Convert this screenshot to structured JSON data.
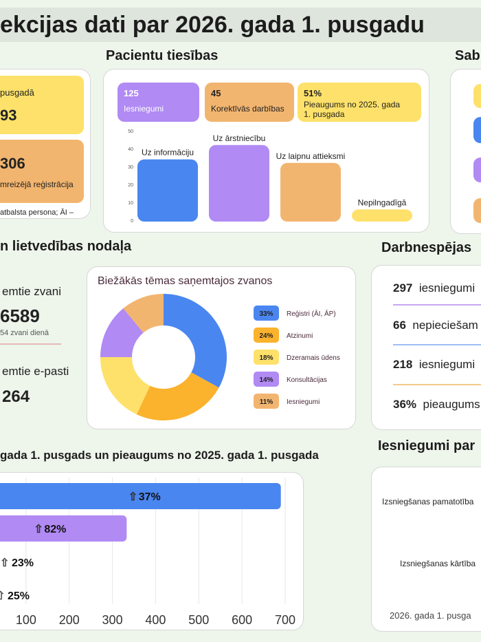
{
  "header": {
    "title": "ekcijas dati par 2026. gada 1. pusgadu"
  },
  "left_card": {
    "top_label": "pusgadā",
    "top_value": "93",
    "mid_value": "306",
    "mid_label": "mreizējā reģistrācija",
    "footnote": "atbalsta persona; ĀI –"
  },
  "patient_rights": {
    "heading": "Pacientu tiesības",
    "tiles": [
      {
        "value": "125",
        "label": "Iesniegumi",
        "color": "#b18af4"
      },
      {
        "value": "45",
        "label": "Korektīvās darbības",
        "color": "#f2b56f"
      },
      {
        "value": "51%",
        "label": "Pieaugums no 2025. gada 1. pusgada",
        "color": "#fde16a"
      }
    ]
  },
  "right_top": {
    "heading": "Sab"
  },
  "office": {
    "heading": "n lietvedības nodaļa",
    "calls_label": "emtie zvani",
    "calls_value": "6589",
    "calls_sub": "54 zvani dienā",
    "emails_label": "emtie e-pasti",
    "emails_value": "264"
  },
  "topics": {
    "heading": "Biežākās tēmas saņemtajos zvanos"
  },
  "work": {
    "heading": "Darbnespējas",
    "rows": [
      {
        "value": "297",
        "label": "iesniegumi"
      },
      {
        "value": "66",
        "label": "nepieciešam"
      },
      {
        "value": "218",
        "label": "iesniegumi"
      },
      {
        "value": "36%",
        "label": "pieaugums"
      }
    ]
  },
  "growth": {
    "heading": "gada 1. pusgads un pieaugums no 2025. gada 1. pusgada"
  },
  "applications": {
    "heading": "Iesniegumi par",
    "row1": "Izsniegšanas pamatotība",
    "row2": "Izsniegšanas kārtība",
    "footer": "2026. gada 1. pusga"
  },
  "chart_data": [
    {
      "type": "bar",
      "categories": [
        "Uz informāciju",
        "Uz ārstniecību",
        "Uz laipnu attieksmi",
        "Nepilngadīgā"
      ],
      "values": [
        34,
        42,
        32,
        6
      ],
      "ylim": [
        0,
        50
      ],
      "yticks": [
        0,
        10,
        20,
        30,
        40,
        50
      ],
      "colors": [
        "#4a86f0",
        "#b18af4",
        "#f2b56f",
        "#fde16a"
      ]
    },
    {
      "type": "pie",
      "title": "Biežākās tēmas saņemtajos zvanos",
      "labels": [
        "Reģistri (ĀI, ĀP)",
        "Atzinumi",
        "Dzeramais ūdens",
        "Konsultācijas",
        "Iesniegumi"
      ],
      "values": [
        33,
        24,
        18,
        14,
        11
      ],
      "value_labels": [
        "33%",
        "24%",
        "18%",
        "14%",
        "11%"
      ],
      "colors": [
        "#4a86f0",
        "#fbb22d",
        "#fde16a",
        "#b18af4",
        "#f2b56f"
      ]
    },
    {
      "type": "bar",
      "orientation": "horizontal",
      "values": [
        690,
        333,
        0,
        0
      ],
      "pct_labels": [
        "37%",
        "82%",
        "23%",
        "25%"
      ],
      "colors": [
        "#4a86f0",
        "#b18af4",
        "#4a86f0",
        "#4a86f0"
      ],
      "xticks": [
        "100",
        "200",
        "300",
        "400",
        "500",
        "600",
        "700"
      ],
      "xlim": [
        0,
        700
      ]
    }
  ]
}
